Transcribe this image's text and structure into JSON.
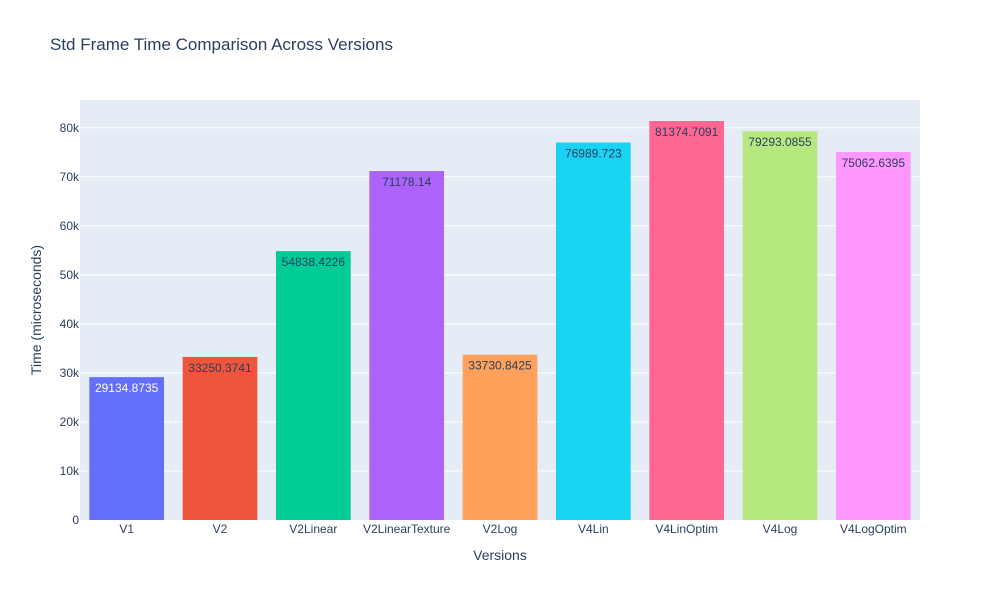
{
  "chart_data": {
    "type": "bar",
    "title": "Std Frame Time Comparison Across Versions",
    "xlabel": "Versions",
    "ylabel": "Time (microseconds)",
    "categories": [
      "V1",
      "V2",
      "V2Linear",
      "V2LinearTexture",
      "V2Log",
      "V4Lin",
      "V4LinOptim",
      "V4Log",
      "V4LogOptim"
    ],
    "values": [
      29134.8735,
      33250.3741,
      54838.4226,
      71178.14,
      33730.8425,
      76989.723,
      81374.7091,
      79293.0855,
      75062.6395
    ],
    "data_labels": [
      "29134.8735",
      "33250.3741",
      "54838.4226",
      "71178.14",
      "33730.8425",
      "76989.723",
      "81374.7091",
      "79293.0855",
      "75062.6395"
    ],
    "colors": [
      "#636efa",
      "#EF553B",
      "#00cc96",
      "#ab63fa",
      "#FFA15A",
      "#19d3f3",
      "#FF6692",
      "#B6E880",
      "#FF97FF"
    ],
    "label_colors": [
      "#ffffff",
      "#2a3f5f",
      "#2a3f5f",
      "#2a3f5f",
      "#2a3f5f",
      "#2a3f5f",
      "#2a3f5f",
      "#2a3f5f",
      "#2a3f5f"
    ],
    "ylim": [
      0,
      85660
    ],
    "yticks": [
      0,
      10000,
      20000,
      30000,
      40000,
      50000,
      60000,
      70000,
      80000
    ],
    "ytick_labels": [
      "0",
      "10k",
      "20k",
      "30k",
      "40k",
      "50k",
      "60k",
      "70k",
      "80k"
    ],
    "plot_background": "#E5ECF6",
    "grid": true,
    "legend": false
  }
}
